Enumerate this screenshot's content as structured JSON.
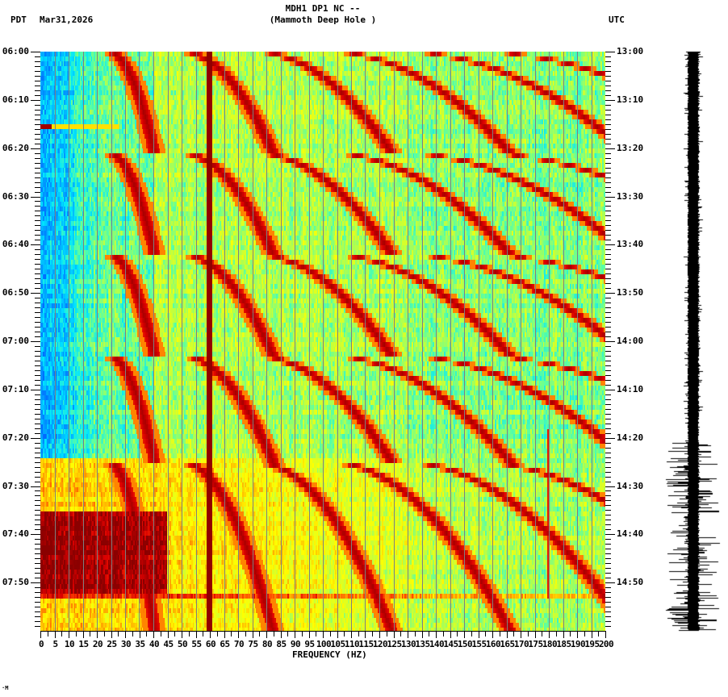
{
  "header": {
    "timezone_left": "PDT",
    "date": "Mar31,2026",
    "station": "MDH1 DP1 NC --",
    "site": "(Mammoth Deep Hole )",
    "timezone_right": "UTC"
  },
  "footer": {
    "mark": "·M"
  },
  "colors": {
    "background": "#ffffff",
    "axis": "#000000",
    "gridline": "#7f7f7f",
    "colormap": [
      "#0050ff",
      "#0096ff",
      "#00e5ff",
      "#5cffa0",
      "#c8ff37",
      "#ffff00",
      "#ffb400",
      "#ff5000",
      "#dc0000",
      "#8b0000"
    ],
    "trace": "#000000"
  },
  "chart_data": {
    "type": "heatmap",
    "title": "MDH1 DP1 NC -- (Mammoth Deep Hole )",
    "subtitle": "PDT Mar31,2026 / UTC",
    "xlabel": "FREQUENCY (HZ)",
    "ylabel_left": "PDT",
    "ylabel_right": "UTC",
    "xlim": [
      0,
      200
    ],
    "x_ticks": [
      0,
      5,
      10,
      15,
      20,
      25,
      30,
      35,
      40,
      45,
      50,
      55,
      60,
      65,
      70,
      75,
      80,
      85,
      90,
      95,
      100,
      105,
      110,
      115,
      120,
      125,
      130,
      135,
      140,
      145,
      150,
      155,
      160,
      165,
      170,
      175,
      180,
      185,
      190,
      195,
      200
    ],
    "x_minor_tick_hz": 1,
    "y_ticks_left": [
      "06:00",
      "06:10",
      "06:20",
      "06:30",
      "06:40",
      "06:50",
      "07:00",
      "07:10",
      "07:20",
      "07:30",
      "07:40",
      "07:50"
    ],
    "y_ticks_right": [
      "13:00",
      "13:10",
      "13:20",
      "13:30",
      "13:40",
      "13:50",
      "14:00",
      "14:10",
      "14:20",
      "14:30",
      "14:40",
      "14:50"
    ],
    "y_minor_tick_min": 1,
    "time_span_minutes": 120,
    "grid": {
      "vertical_lines_every_hz": 5,
      "horizontal": false
    },
    "features": {
      "persistent_line_hz": 60,
      "faint_line_hz": 180,
      "sweep_cycle_minutes": [
        [
          0,
          21
        ],
        [
          21,
          42
        ],
        [
          42,
          63
        ],
        [
          63,
          85
        ],
        [
          85,
          120
        ]
      ],
      "quiet_low_freq_until_minute": 84,
      "noise_onset_minute": 84,
      "strong_noise_window_minutes": [
        95,
        112
      ],
      "broadband_burst_minute": 112.5,
      "low_freq_spike_minute": 15.5
    },
    "legend": null,
    "side_trace": {
      "type": "seismogram",
      "amplitude_increase_after_minute": 81
    }
  }
}
